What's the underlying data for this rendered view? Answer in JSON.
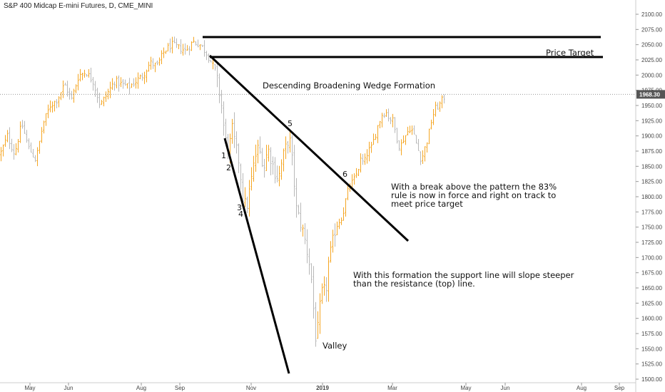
{
  "header": {
    "title": "S&P 400 Midcap E-mini Futures, D, CME_MINI"
  },
  "colors": {
    "up": "#f5a623",
    "down": "#b8b8b8",
    "line": "#000000",
    "axis": "#cccccc",
    "last_bg": "#555555"
  },
  "chart_data": {
    "type": "ohlc",
    "title": "S&P 400 Midcap E-mini Futures, D, CME_MINI",
    "ylim": [
      1500,
      2100
    ],
    "y_ticks": [
      1500,
      1525,
      1550,
      1575,
      1600,
      1625,
      1650,
      1675,
      1700,
      1725,
      1750,
      1775,
      1800,
      1825,
      1850,
      1875,
      1900,
      1925,
      1950,
      1975,
      2000,
      2025,
      2050,
      2075,
      2100
    ],
    "x_labels": [
      "May",
      "Jun",
      "Aug",
      "Sep",
      "Nov",
      "2019",
      "Mar",
      "May",
      "Jun",
      "Aug",
      "Sep"
    ],
    "last_price": "1968.30",
    "price_path": [
      [
        0,
        1870
      ],
      [
        10,
        1900
      ],
      [
        20,
        1870
      ],
      [
        30,
        1920
      ],
      [
        40,
        1880
      ],
      [
        50,
        1860
      ],
      [
        60,
        1920
      ],
      [
        70,
        1950
      ],
      [
        80,
        1960
      ],
      [
        90,
        1985
      ],
      [
        100,
        1960
      ],
      [
        110,
        2000
      ],
      [
        120,
        2005
      ],
      [
        130,
        1990
      ],
      [
        140,
        1950
      ],
      [
        150,
        1970
      ],
      [
        160,
        1990
      ],
      [
        170,
        1985
      ],
      [
        180,
        1980
      ],
      [
        190,
        1990
      ],
      [
        200,
        2000
      ],
      [
        210,
        2020
      ],
      [
        220,
        2015
      ],
      [
        230,
        2040
      ],
      [
        240,
        2050
      ],
      [
        250,
        2045
      ],
      [
        260,
        2040
      ],
      [
        270,
        2055
      ],
      [
        280,
        2050
      ],
      [
        290,
        2035
      ],
      [
        300,
        2010
      ],
      [
        305,
        1985
      ],
      [
        310,
        1950
      ],
      [
        315,
        1895
      ],
      [
        320,
        1875
      ],
      [
        325,
        1910
      ],
      [
        330,
        1880
      ],
      [
        335,
        1855
      ],
      [
        340,
        1800
      ],
      [
        345,
        1780
      ],
      [
        350,
        1815
      ],
      [
        355,
        1850
      ],
      [
        360,
        1880
      ],
      [
        365,
        1870
      ],
      [
        370,
        1850
      ],
      [
        375,
        1880
      ],
      [
        380,
        1860
      ],
      [
        385,
        1840
      ],
      [
        390,
        1830
      ],
      [
        395,
        1860
      ],
      [
        400,
        1880
      ],
      [
        405,
        1900
      ],
      [
        410,
        1850
      ],
      [
        415,
        1780
      ],
      [
        420,
        1760
      ],
      [
        425,
        1740
      ],
      [
        430,
        1710
      ],
      [
        435,
        1680
      ],
      [
        440,
        1600
      ],
      [
        443,
        1555
      ],
      [
        447,
        1610
      ],
      [
        452,
        1650
      ],
      [
        456,
        1640
      ],
      [
        460,
        1690
      ],
      [
        465,
        1720
      ],
      [
        470,
        1750
      ],
      [
        475,
        1760
      ],
      [
        480,
        1770
      ],
      [
        485,
        1800
      ],
      [
        490,
        1820
      ],
      [
        495,
        1825
      ],
      [
        500,
        1840
      ],
      [
        505,
        1860
      ],
      [
        510,
        1855
      ],
      [
        515,
        1875
      ],
      [
        520,
        1880
      ],
      [
        525,
        1900
      ],
      [
        530,
        1920
      ],
      [
        535,
        1935
      ],
      [
        540,
        1940
      ],
      [
        545,
        1930
      ],
      [
        550,
        1925
      ],
      [
        555,
        1900
      ],
      [
        560,
        1880
      ],
      [
        565,
        1895
      ],
      [
        570,
        1905
      ],
      [
        575,
        1915
      ],
      [
        580,
        1900
      ],
      [
        585,
        1880
      ],
      [
        590,
        1860
      ],
      [
        595,
        1880
      ],
      [
        600,
        1900
      ],
      [
        605,
        1930
      ],
      [
        610,
        1945
      ],
      [
        615,
        1950
      ],
      [
        620,
        1960
      ],
      [
        624,
        1968
      ]
    ],
    "annotations": {
      "pattern": "Descending Broadening Wedge Formation",
      "price_target": "Price Target",
      "break_note_1": "With a break above the pattern the 83%",
      "break_note_2": "rule is now in force and right on track to",
      "break_note_3": "meet price target",
      "support_note_1": "With this formation the support line will slope steeper",
      "support_note_2": "than the resistance (top) line.",
      "valley": "Valley",
      "points": [
        "1",
        "2",
        "3",
        "4",
        "5",
        "6"
      ]
    }
  }
}
